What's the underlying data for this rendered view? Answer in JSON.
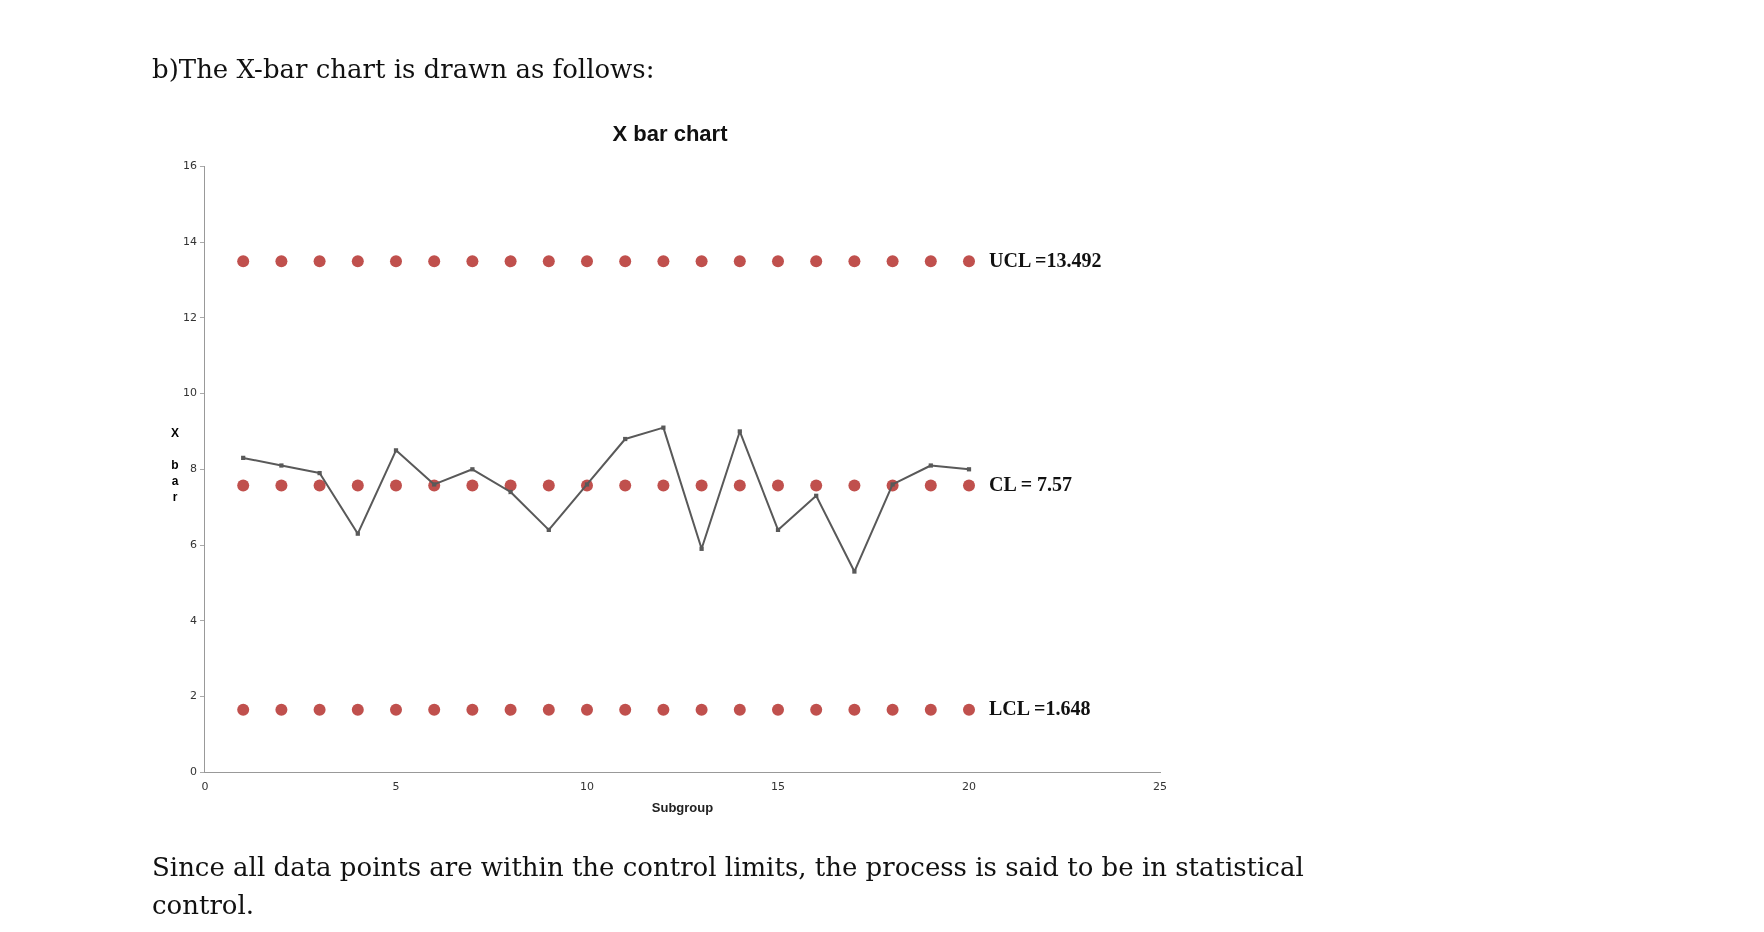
{
  "chart_data": {
    "type": "line",
    "title": "X bar chart",
    "xlabel": "Subgroup",
    "ylabel": "X bar",
    "annotations": [
      "b)The X-bar chart is drawn as follows:",
      "Since all data points are within the control limits, the process is said to be in statistical control."
    ],
    "x": [
      1,
      2,
      3,
      4,
      5,
      6,
      7,
      8,
      9,
      10,
      11,
      12,
      13,
      14,
      15,
      16,
      17,
      18,
      19,
      20
    ],
    "series": [
      {
        "color": "#595959",
        "marker": "square",
        "values": [
          8.3,
          8.1,
          7.9,
          6.3,
          8.5,
          7.6,
          8.0,
          7.4,
          6.4,
          7.6,
          8.8,
          9.1,
          5.9,
          9.0,
          6.4,
          7.3,
          5.3,
          7.6,
          8.1,
          8.0
        ]
      },
      {
        "type": "scatter",
        "name": "UCL =13.492",
        "color": "#c0504d",
        "marker": "circle",
        "values": [
          13.492,
          13.492,
          13.492,
          13.492,
          13.492,
          13.492,
          13.492,
          13.492,
          13.492,
          13.492,
          13.492,
          13.492,
          13.492,
          13.492,
          13.492,
          13.492,
          13.492,
          13.492,
          13.492,
          13.492
        ]
      },
      {
        "type": "scatter",
        "name": "CL = 7.57",
        "color": "#c0504d",
        "marker": "circle",
        "values": [
          7.57,
          7.57,
          7.57,
          7.57,
          7.57,
          7.57,
          7.57,
          7.57,
          7.57,
          7.57,
          7.57,
          7.57,
          7.57,
          7.57,
          7.57,
          7.57,
          7.57,
          7.57,
          7.57,
          7.57
        ]
      },
      {
        "type": "scatter",
        "name": "LCL =1.648",
        "color": "#c0504d",
        "marker": "circle",
        "values": [
          1.648,
          1.648,
          1.648,
          1.648,
          1.648,
          1.648,
          1.648,
          1.648,
          1.648,
          1.648,
          1.648,
          1.648,
          1.648,
          1.648,
          1.648,
          1.648,
          1.648,
          1.648,
          1.648,
          1.648
        ]
      }
    ],
    "xlim": [
      0,
      25
    ],
    "xticks": [
      0,
      5,
      10,
      15,
      20,
      25
    ],
    "ylim": [
      0,
      16
    ],
    "yticks": [
      0,
      2,
      4,
      6,
      8,
      10,
      12,
      14,
      16
    ],
    "grid": false,
    "legend": false
  }
}
